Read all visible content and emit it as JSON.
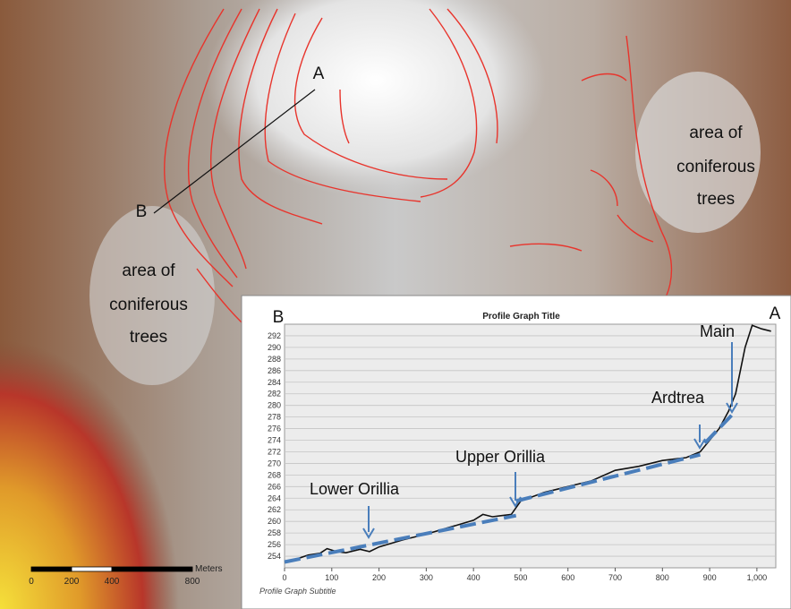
{
  "map": {
    "point_a": "A",
    "point_b": "B",
    "areas": [
      [
        "area of",
        "coniferous",
        "trees"
      ],
      [
        "area of",
        "coniferous",
        "trees"
      ]
    ],
    "scale_unit": "Meters",
    "scale_ticks": [
      0,
      200,
      400,
      800
    ]
  },
  "chart_data": {
    "type": "line",
    "title": "Profile Graph Title",
    "subtitle": "Profile Graph Subtitle",
    "start_label": "B",
    "end_label": "A",
    "annotations": [
      "Lower Orillia",
      "Upper Orillia",
      "Ardtrea",
      "Main"
    ],
    "xlim": [
      0,
      1040
    ],
    "ylim": [
      252,
      294
    ],
    "xticks": [
      0,
      100,
      200,
      300,
      400,
      500,
      600,
      700,
      800,
      900,
      {
        "value": 1000,
        "label": "1,000"
      }
    ],
    "yticks": [
      254,
      256,
      258,
      260,
      262,
      264,
      266,
      268,
      270,
      272,
      274,
      276,
      278,
      280,
      282,
      284,
      286,
      288,
      290,
      292
    ],
    "grid": true,
    "series": [
      {
        "color": "#111111",
        "x": [
          0,
          25,
          50,
          75,
          90,
          110,
          130,
          160,
          180,
          200,
          250,
          300,
          350,
          400,
          420,
          440,
          460,
          480,
          500,
          550,
          600,
          650,
          700,
          750,
          800,
          850,
          880,
          900,
          920,
          940,
          955,
          965,
          975,
          990,
          1010,
          1030
        ],
        "values": [
          253,
          253.5,
          254.2,
          254.5,
          255.3,
          254.8,
          254.6,
          255.2,
          254.8,
          255.6,
          256.8,
          257.8,
          259,
          260.2,
          261.2,
          260.8,
          261,
          261.2,
          263.5,
          265,
          266,
          267,
          268.8,
          269.5,
          270.5,
          271,
          272,
          274,
          276,
          279,
          282,
          286,
          290,
          293.8,
          293.2,
          292.8
        ]
      },
      {
        "color": "#4a7ebb",
        "dashed": true,
        "x": [
          0,
          490
        ],
        "values": [
          253,
          261
        ]
      },
      {
        "color": "#4a7ebb",
        "dashed": true,
        "x": [
          490,
          880
        ],
        "values": [
          263.5,
          271.5
        ]
      },
      {
        "color": "#4a7ebb",
        "dashed": true,
        "x": [
          890,
          955
        ],
        "values": [
          273.5,
          279
        ]
      }
    ]
  }
}
